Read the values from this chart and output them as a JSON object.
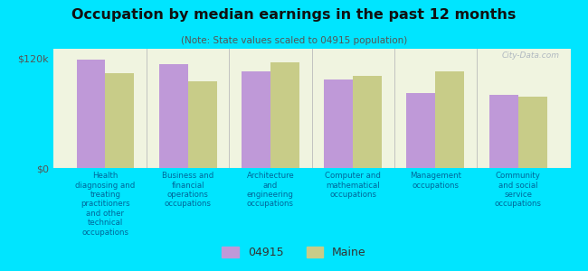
{
  "title": "Occupation by median earnings in the past 12 months",
  "subtitle": "(Note: State values scaled to 04915 population)",
  "background_color": "#00e5ff",
  "plot_bg_color": "#f0f4e0",
  "categories": [
    "Health\ndiagnosing and\ntreating\npractitioners\nand other\ntechnical\noccupations",
    "Business and\nfinancial\noperations\noccupations",
    "Architecture\nand\nengineering\noccupations",
    "Computer and\nmathematical\noccupations",
    "Management\noccupations",
    "Community\nand social\nservice\noccupations"
  ],
  "values_04915": [
    118000,
    113000,
    105000,
    97000,
    82000,
    80000
  ],
  "values_maine": [
    103000,
    95000,
    115000,
    100000,
    105000,
    78000
  ],
  "color_04915": "#bf99d8",
  "color_maine": "#c8cc88",
  "ylim": [
    0,
    130000
  ],
  "ytick_vals": [
    0,
    120000
  ],
  "ytick_labels": [
    "$0",
    "$120k"
  ],
  "legend_labels": [
    "04915",
    "Maine"
  ],
  "bar_width": 0.35,
  "watermark": "City-Data.com"
}
